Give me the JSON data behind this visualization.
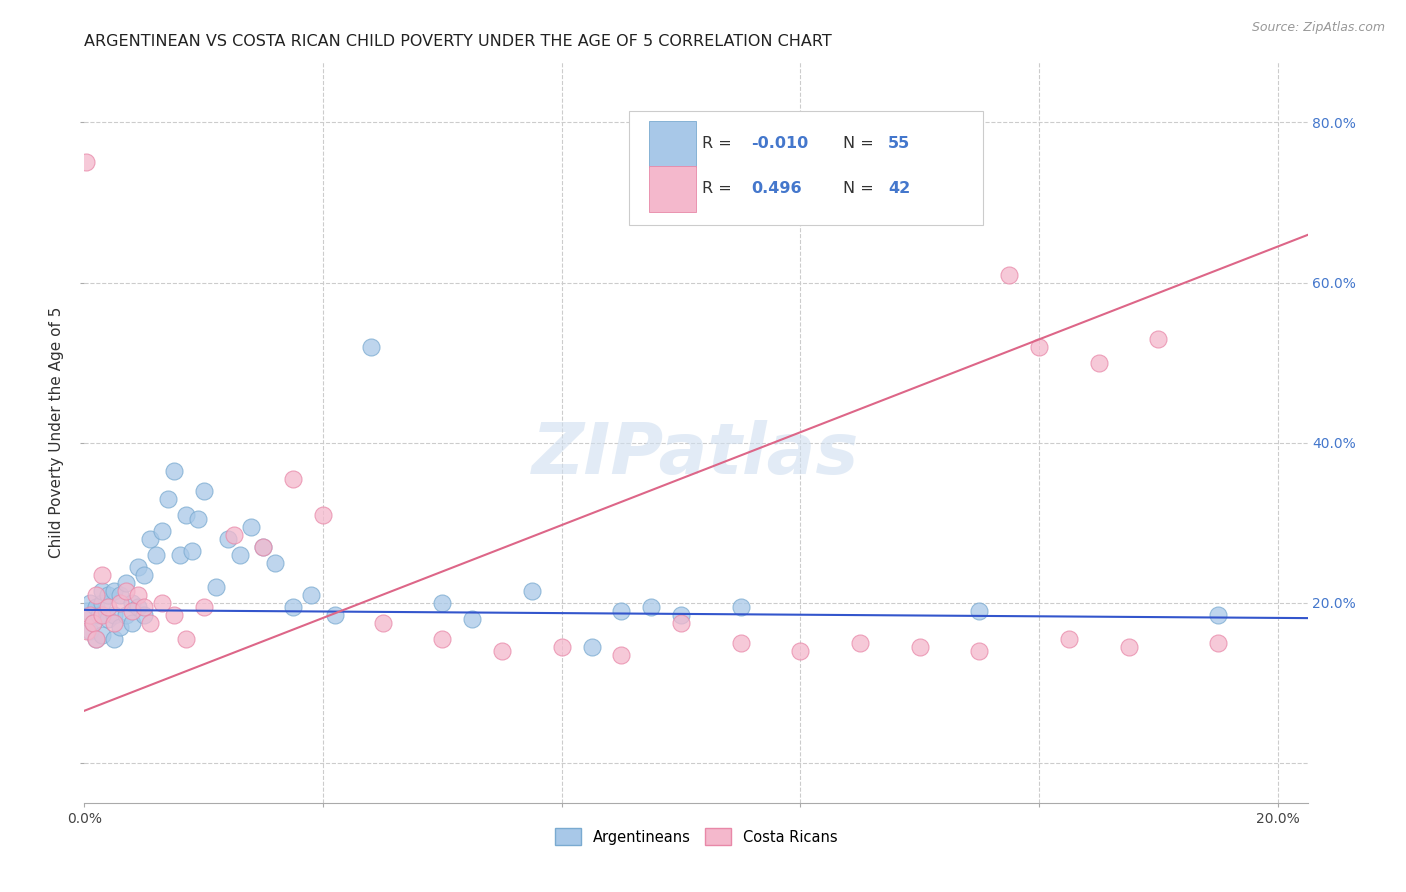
{
  "title": "ARGENTINEAN VS COSTA RICAN CHILD POVERTY UNDER THE AGE OF 5 CORRELATION CHART",
  "source": "Source: ZipAtlas.com",
  "ylabel": "Child Poverty Under the Age of 5",
  "xlim": [
    0.0,
    0.205
  ],
  "ylim": [
    -0.05,
    0.875
  ],
  "background_color": "#ffffff",
  "grid_color": "#cccccc",
  "watermark_text": "ZIPatlas",
  "blue_color": "#a8c8e8",
  "blue_edge_color": "#7aaad0",
  "pink_color": "#f4b8cc",
  "pink_edge_color": "#e888a8",
  "blue_line_color": "#3355cc",
  "pink_line_color": "#dd6688",
  "blue_r": -0.01,
  "blue_n": 55,
  "pink_r": 0.496,
  "pink_n": 42,
  "blue_intercept": 0.191,
  "blue_slope": -0.05,
  "pink_intercept": 0.065,
  "pink_slope": 2.9,
  "arg_x": [
    0.0005,
    0.001,
    0.001,
    0.0015,
    0.002,
    0.002,
    0.0025,
    0.003,
    0.003,
    0.003,
    0.004,
    0.004,
    0.005,
    0.005,
    0.005,
    0.006,
    0.006,
    0.007,
    0.007,
    0.008,
    0.008,
    0.009,
    0.009,
    0.01,
    0.01,
    0.011,
    0.012,
    0.013,
    0.014,
    0.015,
    0.016,
    0.017,
    0.018,
    0.019,
    0.02,
    0.022,
    0.024,
    0.026,
    0.028,
    0.03,
    0.032,
    0.035,
    0.038,
    0.042,
    0.048,
    0.06,
    0.065,
    0.075,
    0.085,
    0.09,
    0.095,
    0.1,
    0.11,
    0.15,
    0.19
  ],
  "arg_y": [
    0.19,
    0.165,
    0.2,
    0.175,
    0.155,
    0.195,
    0.185,
    0.16,
    0.2,
    0.215,
    0.18,
    0.21,
    0.155,
    0.185,
    0.215,
    0.17,
    0.21,
    0.185,
    0.225,
    0.175,
    0.2,
    0.195,
    0.245,
    0.185,
    0.235,
    0.28,
    0.26,
    0.29,
    0.33,
    0.365,
    0.26,
    0.31,
    0.265,
    0.305,
    0.34,
    0.22,
    0.28,
    0.26,
    0.295,
    0.27,
    0.25,
    0.195,
    0.21,
    0.185,
    0.52,
    0.2,
    0.18,
    0.215,
    0.145,
    0.19,
    0.195,
    0.185,
    0.195,
    0.19,
    0.185
  ],
  "cr_x": [
    0.0003,
    0.0005,
    0.001,
    0.0015,
    0.002,
    0.002,
    0.003,
    0.003,
    0.004,
    0.005,
    0.006,
    0.007,
    0.008,
    0.009,
    0.01,
    0.011,
    0.013,
    0.015,
    0.017,
    0.02,
    0.025,
    0.03,
    0.035,
    0.04,
    0.05,
    0.06,
    0.07,
    0.08,
    0.09,
    0.1,
    0.11,
    0.12,
    0.13,
    0.14,
    0.15,
    0.155,
    0.16,
    0.165,
    0.17,
    0.175,
    0.18,
    0.19
  ],
  "cr_y": [
    0.75,
    0.165,
    0.185,
    0.175,
    0.155,
    0.21,
    0.185,
    0.235,
    0.195,
    0.175,
    0.2,
    0.215,
    0.19,
    0.21,
    0.195,
    0.175,
    0.2,
    0.185,
    0.155,
    0.195,
    0.285,
    0.27,
    0.355,
    0.31,
    0.175,
    0.155,
    0.14,
    0.145,
    0.135,
    0.175,
    0.15,
    0.14,
    0.15,
    0.145,
    0.14,
    0.61,
    0.52,
    0.155,
    0.5,
    0.145,
    0.53,
    0.15
  ]
}
